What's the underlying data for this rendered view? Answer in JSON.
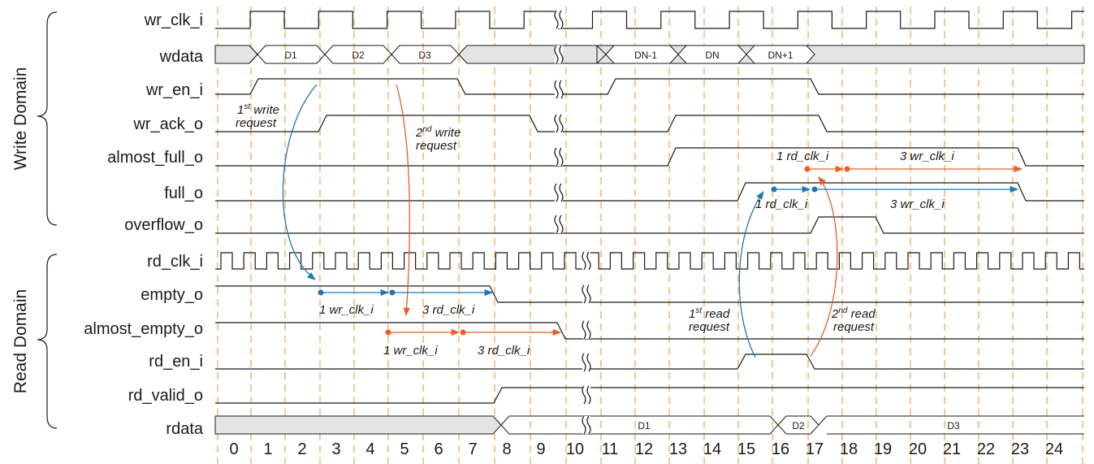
{
  "domains": {
    "write": "Write Domain",
    "read": "Read Domain"
  },
  "signals": [
    {
      "id": "wr_clk_i",
      "label": "wr_clk_i"
    },
    {
      "id": "wdata",
      "label": "wdata"
    },
    {
      "id": "wr_en_i",
      "label": "wr_en_i"
    },
    {
      "id": "wr_ack_o",
      "label": "wr_ack_o"
    },
    {
      "id": "almost_full_o",
      "label": "almost_full_o"
    },
    {
      "id": "full_o",
      "label": "full_o"
    },
    {
      "id": "overflow_o",
      "label": "overflow_o"
    },
    {
      "id": "rd_clk_i",
      "label": "rd_clk_i"
    },
    {
      "id": "empty_o",
      "label": "empty_o"
    },
    {
      "id": "almost_empty_o",
      "label": "almost_empty_o"
    },
    {
      "id": "rd_en_i",
      "label": "rd_en_i"
    },
    {
      "id": "rd_valid_o",
      "label": "rd_valid_o"
    },
    {
      "id": "rdata",
      "label": "rdata"
    }
  ],
  "ticks": [
    "0",
    "1",
    "2",
    "3",
    "4",
    "5",
    "6",
    "7",
    "8",
    "9",
    "10",
    "11",
    "12",
    "13",
    "14",
    "15",
    "16",
    "17",
    "18",
    "19",
    "20",
    "21",
    "22",
    "23",
    "24"
  ],
  "wdata_words": [
    "D1",
    "D2",
    "D3",
    "DN-1",
    "DN",
    "DN+1"
  ],
  "rdata_words": [
    "D1",
    "D2",
    "D3"
  ],
  "annotations": {
    "write1": {
      "pre": "1",
      "sup": "st",
      "post": " write",
      "line2": "request"
    },
    "write2": {
      "pre": "2",
      "sup": "nd",
      "post": " write",
      "line2": "request"
    },
    "read1": {
      "pre": "1",
      "sup": "st",
      "post": " read",
      "line2": "request"
    },
    "read2": {
      "pre": "2",
      "sup": "nd",
      "post": " read",
      "line2": "request"
    },
    "empty_a": "1 wr_clk_i",
    "empty_b": "3 rd_clk_i",
    "aempty_a": "1 wr_clk_i",
    "aempty_b": "3 rd_clk_i",
    "afull_a": "1 rd_clk_i",
    "afull_b": "3 wr_clk_i",
    "full_a": "1 rd_clk_i",
    "full_b": "3 wr_clk_i"
  },
  "colors": {
    "write_path": "#1f78b4",
    "read_path": "#e85d2a",
    "grid": "#f0a050",
    "bus_idle": "#e4e4e4"
  }
}
